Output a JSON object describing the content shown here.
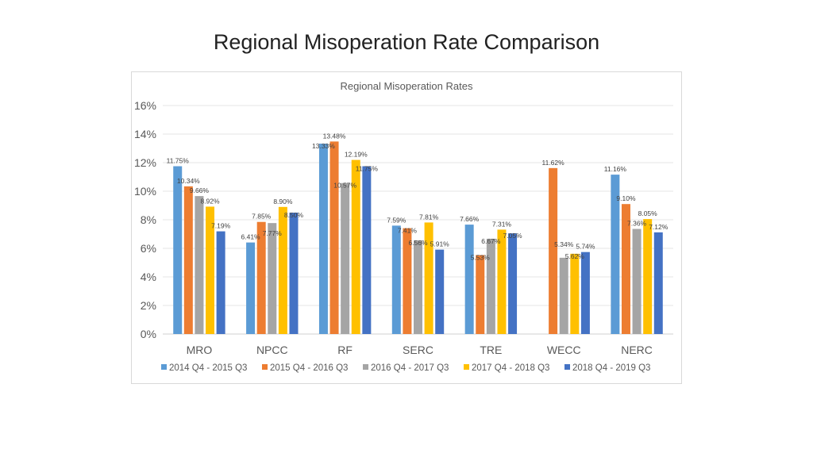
{
  "slide_title": "Regional Misoperation Rate Comparison",
  "chart_data": {
    "type": "bar",
    "title": "Regional Misoperation Rates",
    "xlabel": "",
    "ylabel": "",
    "ylim": [
      0,
      16
    ],
    "yticks": [
      "0%",
      "2%",
      "4%",
      "6%",
      "8%",
      "10%",
      "12%",
      "14%",
      "16%"
    ],
    "grid": true,
    "legend_position": "bottom",
    "categories": [
      "MRO",
      "NPCC",
      "RF",
      "SERC",
      "TRE",
      "WECC",
      "NERC"
    ],
    "series": [
      {
        "name": "2014 Q4 - 2015 Q3",
        "color": "#5b9bd5",
        "values": [
          11.75,
          6.41,
          13.33,
          7.59,
          7.66,
          null,
          11.16
        ],
        "labels": [
          "11.75%",
          "6.41%",
          "13.33%",
          "7.59%",
          "7.66%",
          "",
          "11.16%"
        ]
      },
      {
        "name": "2015 Q4 - 2016 Q3",
        "color": "#ed7d31",
        "values": [
          10.34,
          7.85,
          13.48,
          7.41,
          5.53,
          11.62,
          9.1
        ],
        "labels": [
          "10.34%",
          "7.85%",
          "13.48%",
          "7.41%",
          "5.53%",
          "11.62%",
          "9.10%"
        ]
      },
      {
        "name": "2016 Q4 - 2017 Q3",
        "color": "#a5a5a5",
        "values": [
          9.66,
          7.77,
          10.57,
          6.56,
          6.67,
          5.34,
          7.36
        ],
        "labels": [
          "9.66%",
          "7.77%",
          "10.57%",
          "6.56%",
          "6.67%",
          "5.34%",
          "7.36%"
        ]
      },
      {
        "name": "2017 Q4 - 2018 Q3",
        "color": "#ffc000",
        "values": [
          8.92,
          8.9,
          12.19,
          7.81,
          7.31,
          5.62,
          8.05
        ],
        "labels": [
          "8.92%",
          "8.90%",
          "12.19%",
          "7.81%",
          "7.31%",
          "5.62%",
          "8.05%"
        ]
      },
      {
        "name": "2018 Q4 - 2019 Q3",
        "color": "#4472c4",
        "values": [
          7.19,
          8.5,
          11.75,
          5.91,
          7.05,
          5.74,
          7.12
        ],
        "labels": [
          "7.19%",
          "8.50%",
          "11.75%",
          "5.91%",
          "7.05%",
          "5.74%",
          "7.12%"
        ]
      }
    ]
  }
}
